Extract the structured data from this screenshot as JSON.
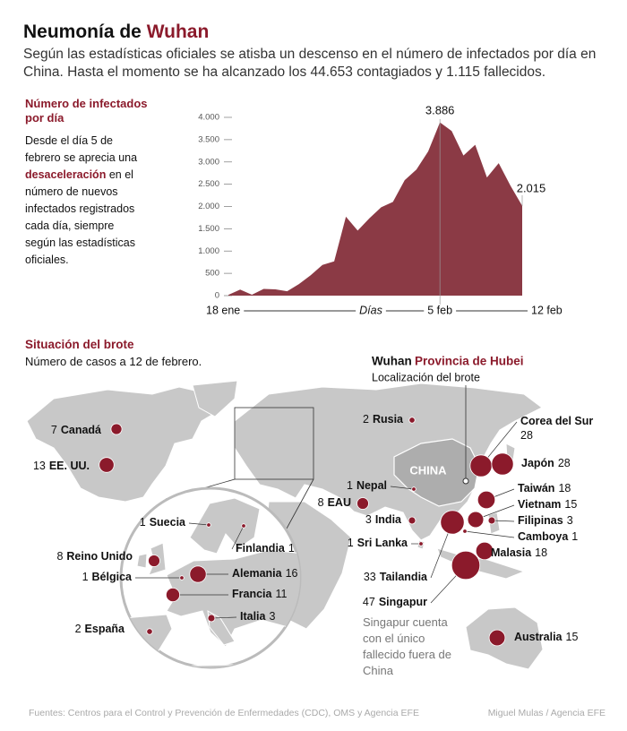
{
  "header": {
    "title": "Neumonía de",
    "title_highlight": "Wuhan",
    "subtitle": "Según las estadísticas oficiales se atisba un descenso en el número de infectados por día en China. Hasta el momento se ha alcanzado los 44.653 contagiados y 1.115 fallecidos."
  },
  "chart_data": {
    "type": "area",
    "title": "Número de infectados por día",
    "xlabel": "Días",
    "categories": [
      "18 ene",
      null,
      null,
      null,
      null,
      null,
      null,
      null,
      null,
      null,
      null,
      null,
      null,
      null,
      null,
      null,
      null,
      null,
      "5 feb",
      null,
      null,
      null,
      null,
      null,
      null,
      "12 feb"
    ],
    "values": [
      17,
      136,
      19,
      151,
      140,
      97,
      259,
      457,
      688,
      769,
      1771,
      1459,
      1737,
      1982,
      2102,
      2590,
      2829,
      3235,
      3886,
      3694,
      3143,
      3385,
      2652,
      2973,
      2467,
      2015
    ],
    "value_labels": [
      null,
      null,
      null,
      null,
      null,
      null,
      null,
      null,
      null,
      null,
      null,
      null,
      null,
      null,
      null,
      null,
      null,
      null,
      "3.886",
      null,
      null,
      null,
      null,
      null,
      null,
      "2.015"
    ],
    "color": "#8b3a45",
    "ylim": [
      0,
      4000
    ],
    "yticks": [
      0,
      500,
      {
        "value": 1000,
        "label": "1.000"
      },
      {
        "value": 1500,
        "label": "1.500"
      },
      {
        "value": 2000,
        "label": "2.000"
      },
      {
        "value": 2500,
        "label": "2.500"
      },
      {
        "value": 3000,
        "label": "3.000"
      },
      {
        "value": 3500,
        "label": "3.500"
      },
      {
        "value": 4000,
        "label": "4.000"
      }
    ]
  },
  "sidebar": {
    "text_before": "Desde el día 5 de febrero se aprecia una",
    "highlight": "desaceleración",
    "text_after": "en el número de nuevos infectados registrados cada día, siempre según las estadísticas oficiales."
  },
  "map": {
    "title": "Situación del brote",
    "subtitle": "Número de casos a 12 de febrero.",
    "china_label": "CHINA",
    "outbreak": {
      "city": "Wuhan",
      "province": "Provincia de Hubei",
      "caption": "Localización del brote"
    },
    "countries": [
      {
        "name": "Canadá",
        "cases": 7
      },
      {
        "name": "EE. UU.",
        "cases": 13
      },
      {
        "name": "Rusia",
        "cases": 2
      },
      {
        "name": "Corea del Sur",
        "cases": 28
      },
      {
        "name": "Japón",
        "cases": 28
      },
      {
        "name": "Nepal",
        "cases": 1
      },
      {
        "name": "EAU",
        "cases": 8
      },
      {
        "name": "India",
        "cases": 3
      },
      {
        "name": "Sri Lanka",
        "cases": 1
      },
      {
        "name": "Taiwán",
        "cases": 18
      },
      {
        "name": "Vietnam",
        "cases": 15
      },
      {
        "name": "Filipinas",
        "cases": 3
      },
      {
        "name": "Camboya",
        "cases": 1
      },
      {
        "name": "Malasia",
        "cases": 18
      },
      {
        "name": "Tailandia",
        "cases": 33
      },
      {
        "name": "Singapur",
        "cases": 47
      },
      {
        "name": "Australia",
        "cases": 15
      },
      {
        "name": "Suecia",
        "cases": 1
      },
      {
        "name": "Finlandia",
        "cases": 1
      },
      {
        "name": "Reino Unido",
        "cases": 8
      },
      {
        "name": "Bélgica",
        "cases": 1
      },
      {
        "name": "Alemania",
        "cases": 16
      },
      {
        "name": "Francia",
        "cases": 11
      },
      {
        "name": "Italia",
        "cases": 3
      },
      {
        "name": "España",
        "cases": 2
      }
    ],
    "note": "Singapur cuenta con el único fallecido fuera de China"
  },
  "footer": {
    "sources": "Fuentes: Centros para el Control y Prevención de Enfermedades (CDC), OMS y Agencia EFE",
    "credit": "Miguel Mulas / Agencia EFE"
  }
}
